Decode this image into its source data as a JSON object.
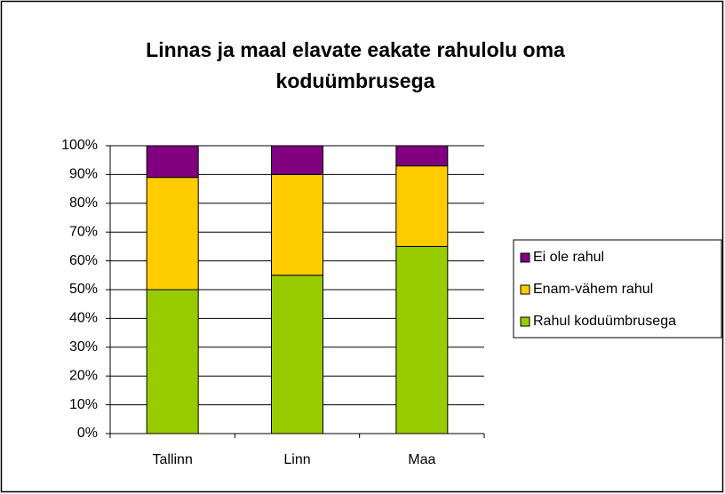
{
  "chart_data": {
    "type": "stacked_bar",
    "title": [
      "Linnas ja maal elavate eakate rahulolu oma",
      "koduümbrusega"
    ],
    "categories": [
      "Tallinn",
      "Linn",
      "Maa"
    ],
    "series": [
      {
        "name": "Rahul koduümbrusega",
        "color": "#99cc00",
        "values": [
          50,
          55,
          65
        ]
      },
      {
        "name": "Enam-vähem rahul",
        "color": "#ffcc00",
        "values": [
          39,
          35,
          28
        ]
      },
      {
        "name": "Ei ole rahul",
        "color": "#800080",
        "values": [
          11,
          10,
          7
        ]
      }
    ],
    "ylim": [
      0,
      100
    ],
    "yticks": [
      {
        "value": 0,
        "label": "0%"
      },
      {
        "value": 10,
        "label": "10%"
      },
      {
        "value": 20,
        "label": "20%"
      },
      {
        "value": 30,
        "label": "30%"
      },
      {
        "value": 40,
        "label": "40%"
      },
      {
        "value": 50,
        "label": "50%"
      },
      {
        "value": 60,
        "label": "60%"
      },
      {
        "value": 70,
        "label": "70%"
      },
      {
        "value": 80,
        "label": "80%"
      },
      {
        "value": 90,
        "label": "90%"
      },
      {
        "value": 100,
        "label": "100%"
      }
    ],
    "grid": true,
    "legend": "right"
  }
}
